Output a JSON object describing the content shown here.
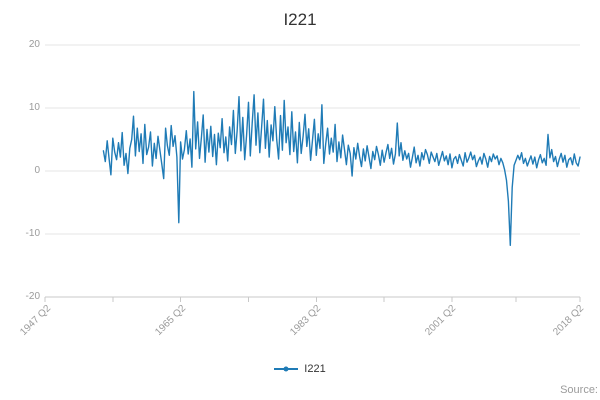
{
  "title": "I221",
  "legend": {
    "label": "I221"
  },
  "source_label": "Source:",
  "colors": {
    "line": "#1f7bb6",
    "grid": "#e4e4e4"
  },
  "chart_data": {
    "type": "line",
    "title": "I221",
    "series_name": "I221",
    "ylabel": "",
    "xlabel": "",
    "ylim": [
      -20,
      20
    ],
    "y_ticks": [
      20,
      10,
      0,
      -10,
      -20
    ],
    "x_tick_labels": [
      "1947 Q2",
      "1965 Q2",
      "1983 Q2",
      "2001 Q2",
      "2018 Q2"
    ],
    "x_tick_years": [
      1947.25,
      1965.25,
      1983.25,
      2001.25,
      2018.25
    ],
    "x_axis_range": [
      1947.25,
      2018.25
    ],
    "x_start_year": 1955.0,
    "x_step_years": 0.25,
    "grid": true,
    "legend_position": "bottom",
    "values": [
      3.2,
      1.5,
      4.8,
      2.1,
      -0.6,
      5.2,
      3.0,
      1.8,
      4.5,
      2.2,
      6.1,
      0.9,
      2.8,
      -0.4,
      3.6,
      5.0,
      8.7,
      2.4,
      6.8,
      3.1,
      5.9,
      1.2,
      7.4,
      2.6,
      3.8,
      6.2,
      0.8,
      4.4,
      2.0,
      5.5,
      3.3,
      1.1,
      -1.2,
      6.8,
      4.0,
      2.5,
      7.2,
      3.9,
      5.6,
      2.2,
      -8.2,
      4.6,
      1.9,
      3.4,
      6.4,
      2.7,
      5.1,
      0.6,
      12.6,
      3.5,
      7.8,
      2.0,
      5.3,
      8.9,
      1.4,
      6.6,
      3.0,
      7.1,
      2.3,
      5.8,
      1.0,
      6.0,
      3.7,
      8.3,
      2.9,
      5.4,
      1.6,
      7.0,
      4.2,
      9.6,
      2.8,
      6.3,
      11.8,
      3.2,
      8.5,
      1.8,
      5.7,
      10.9,
      2.4,
      7.6,
      12.1,
      4.1,
      9.2,
      2.9,
      6.9,
      11.4,
      3.6,
      8.0,
      2.2,
      7.3,
      4.8,
      10.2,
      5.0,
      1.9,
      8.8,
      3.3,
      11.2,
      4.5,
      7.0,
      2.6,
      9.4,
      3.1,
      6.2,
      1.3,
      7.7,
      2.8,
      5.5,
      9.0,
      3.9,
      6.7,
      1.7,
      4.9,
      8.2,
      2.5,
      5.9,
      3.6,
      10.5,
      1.2,
      4.3,
      6.8,
      2.7,
      5.2,
      3.0,
      7.4,
      1.5,
      4.6,
      2.1,
      5.7,
      3.4,
      1.0,
      4.1,
      2.8,
      -0.8,
      3.7,
      1.9,
      4.4,
      2.3,
      0.7,
      3.5,
      1.6,
      4.0,
      2.2,
      0.4,
      3.1,
      1.8,
      3.9,
      2.6,
      0.9,
      3.3,
      1.4,
      2.9,
      4.2,
      2.0,
      3.6,
      1.1,
      2.7,
      7.6,
      2.4,
      4.5,
      1.7,
      3.2,
      1.9,
      2.8,
      0.6,
      2.1,
      3.8,
      1.3,
      2.5,
      0.8,
      2.9,
      1.8,
      3.4,
      2.6,
      1.2,
      3.0,
      2.2,
      1.5,
      2.8,
      0.9,
      2.0,
      3.1,
      1.6,
      2.4,
      1.0,
      2.7,
      0.5,
      1.9,
      2.3,
      1.2,
      2.6,
      1.7,
      0.8,
      2.9,
      1.4,
      2.1,
      3.0,
      1.8,
      2.5,
      0.7,
      1.6,
      2.2,
      1.1,
      2.8,
      1.9,
      0.6,
      2.3,
      1.5,
      2.7,
      1.9,
      2.4,
      1.0,
      2.0,
      1.3,
      0.2,
      -1.5,
      -4.8,
      -11.8,
      -2.6,
      0.9,
      1.7,
      2.5,
      1.8,
      2.9,
      1.2,
      2.0,
      0.8,
      1.6,
      2.4,
      1.1,
      2.2,
      0.5,
      1.8,
      2.6,
      1.3,
      2.0,
      0.9,
      5.8,
      2.1,
      3.4,
      1.5,
      2.3,
      0.7,
      1.9,
      2.8,
      1.4,
      2.5,
      0.6,
      1.8,
      2.1,
      1.0,
      2.7,
      1.3,
      0.8,
      2.2
    ]
  }
}
